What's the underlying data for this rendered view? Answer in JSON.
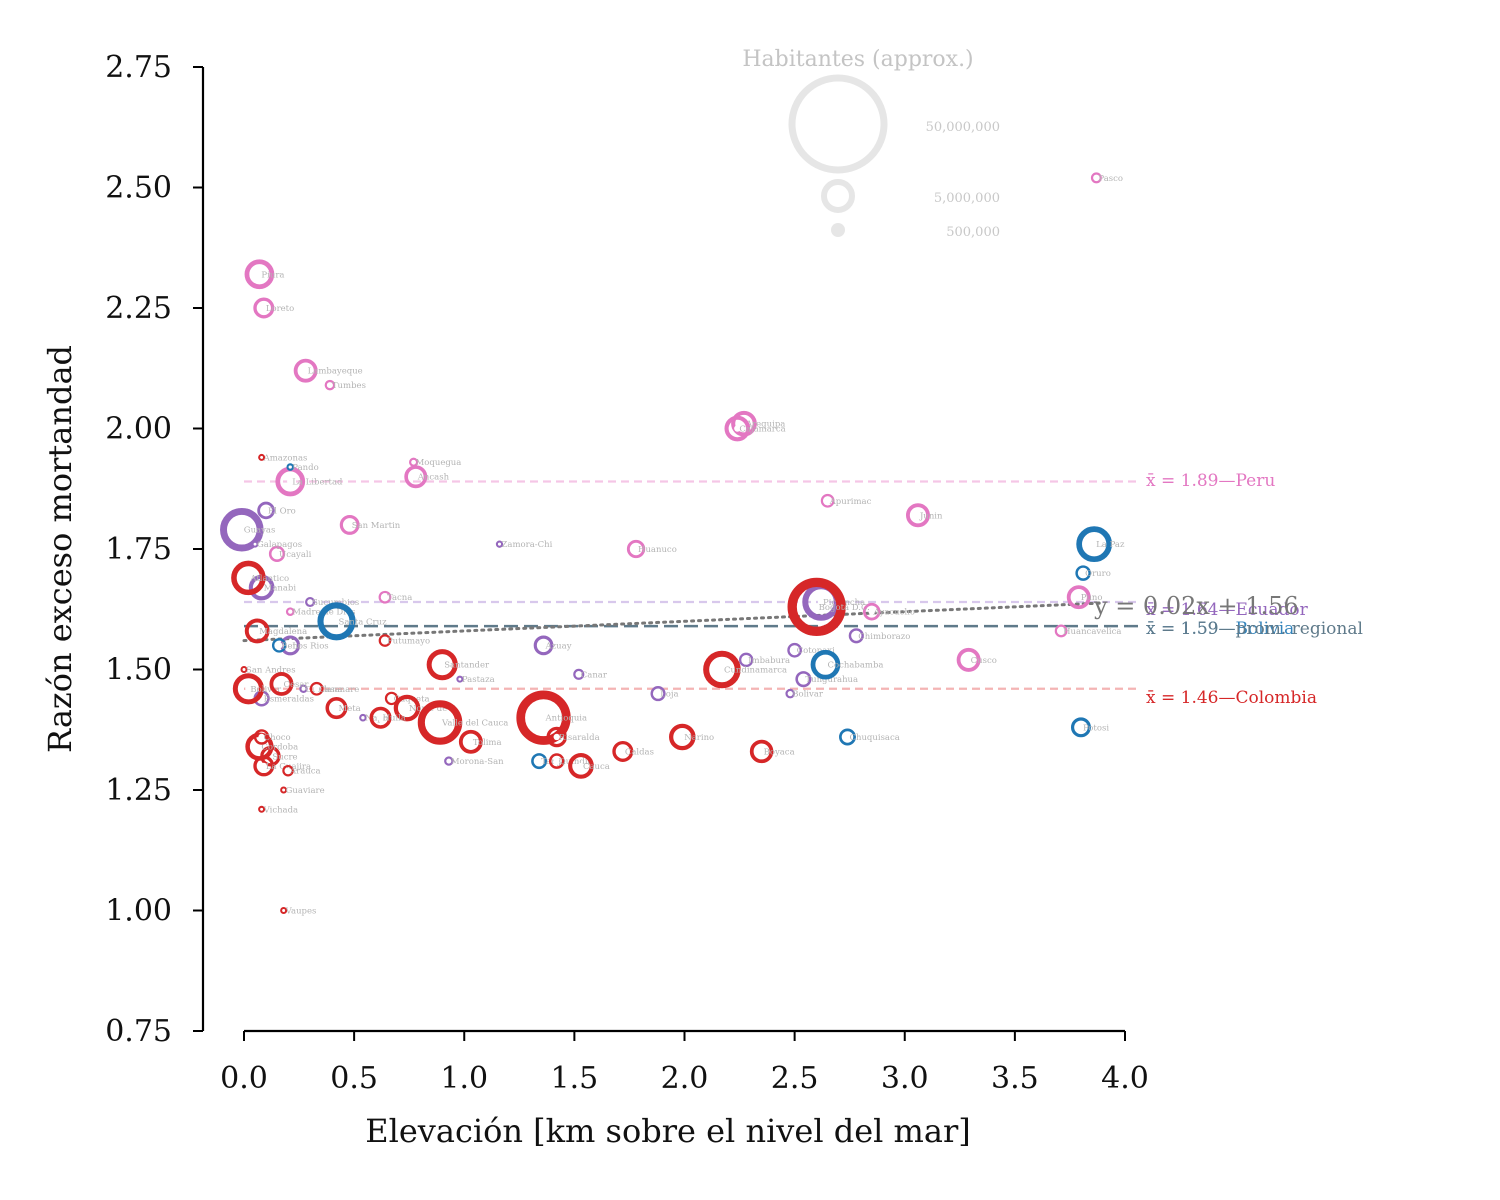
{
  "chart_data": {
    "type": "scatter",
    "xlabel": "Elevación [km sobre el nivel del mar]",
    "ylabel": "Razón exceso mortandad",
    "xlim": [
      -0.2,
      4.0
    ],
    "ylim": [
      0.75,
      2.75
    ],
    "xticks": [
      "0.0",
      "0.5",
      "1.0",
      "1.5",
      "2.0",
      "2.5",
      "3.0",
      "3.5",
      "4.0"
    ],
    "yticks": [
      "0.75",
      "1.00",
      "1.25",
      "1.50",
      "1.75",
      "2.00",
      "2.25",
      "2.50",
      "2.75"
    ],
    "colors": {
      "Peru": "#e377c2",
      "Ecuador": "#9467bd",
      "Bolivia": "#1f77b4",
      "Colombia": "#d62728",
      "regional": "#5f7a8a",
      "fit": "#777777"
    },
    "size_legend": {
      "title": "Habitantes (approx.)",
      "entries": [
        {
          "label": "50,000,000",
          "value": 50000000
        },
        {
          "label": "5,000,000",
          "value": 5000000
        },
        {
          "label": "500,000",
          "value": 500000
        }
      ]
    },
    "means": [
      {
        "country": "Peru",
        "value": 1.89,
        "label": "x̄ = 1.89—Peru"
      },
      {
        "country": "Ecuador",
        "value": 1.64,
        "label": "x̄ = 1.64—Ecuador"
      },
      {
        "country": "Bolivia",
        "value": 1.59,
        "label": "x̄ = 1.59—Bolivia"
      },
      {
        "country": "regional",
        "value": 1.59,
        "label": "x̄ = 1.59—prom. regional"
      },
      {
        "country": "Colombia",
        "value": 1.46,
        "label": "x̄ = 1.46—Colombia"
      }
    ],
    "fit": {
      "slope": 0.02,
      "intercept": 1.56,
      "label": "y = 0.02x + 1.56",
      "x_range": [
        0.0,
        3.9
      ]
    },
    "series": [
      {
        "name": "Peru",
        "points": [
          {
            "label": "Piura",
            "x": 0.07,
            "y": 2.32,
            "pop": 2000000
          },
          {
            "label": "Loreto",
            "x": 0.09,
            "y": 2.25,
            "pop": 1000000
          },
          {
            "label": "Lambayeque",
            "x": 0.28,
            "y": 2.12,
            "pop": 1300000
          },
          {
            "label": "Tumbes",
            "x": 0.39,
            "y": 2.09,
            "pop": 250000
          },
          {
            "label": "La Libertad",
            "x": 0.21,
            "y": 1.89,
            "pop": 2000000
          },
          {
            "label": "Moquegua",
            "x": 0.77,
            "y": 1.93,
            "pop": 190000
          },
          {
            "label": "Ancash",
            "x": 0.78,
            "y": 1.9,
            "pop": 1200000
          },
          {
            "label": "San Martin",
            "x": 0.48,
            "y": 1.8,
            "pop": 900000
          },
          {
            "label": "Ucayali",
            "x": 0.15,
            "y": 1.74,
            "pop": 600000
          },
          {
            "label": "Tacna",
            "x": 0.64,
            "y": 1.65,
            "pop": 370000
          },
          {
            "label": "Madre de Dios",
            "x": 0.21,
            "y": 1.62,
            "pop": 170000
          },
          {
            "label": "Huanuco",
            "x": 1.78,
            "y": 1.75,
            "pop": 760000
          },
          {
            "label": "Arequipa",
            "x": 2.27,
            "y": 2.01,
            "pop": 1500000
          },
          {
            "label": "Cajamarca",
            "x": 2.24,
            "y": 2.0,
            "pop": 1500000
          },
          {
            "label": "Apurimac",
            "x": 2.65,
            "y": 1.85,
            "pop": 430000
          },
          {
            "label": "Junin",
            "x": 3.06,
            "y": 1.82,
            "pop": 1300000
          },
          {
            "label": "Ayacucho",
            "x": 2.85,
            "y": 1.62,
            "pop": 700000
          },
          {
            "label": "Cusco",
            "x": 3.29,
            "y": 1.52,
            "pop": 1300000
          },
          {
            "label": "Pasco",
            "x": 3.87,
            "y": 2.52,
            "pop": 270000
          },
          {
            "label": "Puno",
            "x": 3.79,
            "y": 1.65,
            "pop": 1300000
          },
          {
            "label": "Huancavelica",
            "x": 3.71,
            "y": 1.58,
            "pop": 370000
          }
        ]
      },
      {
        "name": "Ecuador",
        "points": [
          {
            "label": "Guayas",
            "x": -0.01,
            "y": 1.79,
            "pop": 4300000
          },
          {
            "label": "El Oro",
            "x": 0.1,
            "y": 1.83,
            "pop": 700000
          },
          {
            "label": "Galapagos",
            "x": 0.05,
            "y": 1.76,
            "pop": 30000
          },
          {
            "label": "Manabi",
            "x": 0.08,
            "y": 1.67,
            "pop": 1500000
          },
          {
            "label": "Sucumbios",
            "x": 0.3,
            "y": 1.64,
            "pop": 230000
          },
          {
            "label": "Los Rios",
            "x": 0.21,
            "y": 1.55,
            "pop": 900000
          },
          {
            "label": "Esmeraldas",
            "x": 0.08,
            "y": 1.44,
            "pop": 600000
          },
          {
            "label": "Orellana",
            "x": 0.27,
            "y": 1.46,
            "pop": 160000
          },
          {
            "label": "Napo",
            "x": 0.54,
            "y": 1.4,
            "pop": 130000
          },
          {
            "label": "Pastaza",
            "x": 0.98,
            "y": 1.48,
            "pop": 110000
          },
          {
            "label": "Zamora-Chi",
            "x": 1.16,
            "y": 1.76,
            "pop": 120000
          },
          {
            "label": "Morona-San",
            "x": 0.93,
            "y": 1.31,
            "pop": 200000
          },
          {
            "label": "Canar",
            "x": 1.52,
            "y": 1.49,
            "pop": 280000
          },
          {
            "label": "Azuay",
            "x": 1.36,
            "y": 1.55,
            "pop": 880000
          },
          {
            "label": "Loja",
            "x": 1.88,
            "y": 1.45,
            "pop": 520000
          },
          {
            "label": "Pichincha",
            "x": 2.62,
            "y": 1.64,
            "pop": 3200000
          },
          {
            "label": "Imbabura",
            "x": 2.28,
            "y": 1.52,
            "pop": 470000
          },
          {
            "label": "Cotopaxi",
            "x": 2.5,
            "y": 1.54,
            "pop": 490000
          },
          {
            "label": "Tungurahua",
            "x": 2.54,
            "y": 1.48,
            "pop": 590000
          },
          {
            "label": "Bolivar",
            "x": 2.48,
            "y": 1.45,
            "pop": 210000
          },
          {
            "label": "Chimborazo",
            "x": 2.78,
            "y": 1.57,
            "pop": 520000
          }
        ]
      },
      {
        "name": "Bolivia",
        "points": [
          {
            "label": "Pando",
            "x": 0.21,
            "y": 1.92,
            "pop": 130000
          },
          {
            "label": "Beni",
            "x": 0.16,
            "y": 1.55,
            "pop": 480000
          },
          {
            "label": "Santa Cruz",
            "x": 0.42,
            "y": 1.6,
            "pop": 3300000
          },
          {
            "label": "Tarija",
            "x": 1.34,
            "y": 1.31,
            "pop": 580000
          },
          {
            "label": "Chuquisaca",
            "x": 2.74,
            "y": 1.36,
            "pop": 650000
          },
          {
            "label": "Cochabamba",
            "x": 2.64,
            "y": 1.51,
            "pop": 2000000
          },
          {
            "label": "La Paz",
            "x": 3.86,
            "y": 1.76,
            "pop": 2900000
          },
          {
            "label": "Oruro",
            "x": 3.81,
            "y": 1.7,
            "pop": 550000
          },
          {
            "label": "Potosi",
            "x": 3.8,
            "y": 1.38,
            "pop": 900000
          }
        ]
      },
      {
        "name": "Colombia",
        "points": [
          {
            "label": "Amazonas",
            "x": 0.08,
            "y": 1.94,
            "pop": 80000
          },
          {
            "label": "Atlantico",
            "x": 0.02,
            "y": 1.69,
            "pop": 2700000
          },
          {
            "label": "Magdalena",
            "x": 0.06,
            "y": 1.58,
            "pop": 1400000
          },
          {
            "label": "San Andres",
            "x": 0.0,
            "y": 1.5,
            "pop": 60000
          },
          {
            "label": "Bolivar",
            "x": 0.02,
            "y": 1.46,
            "pop": 2200000
          },
          {
            "label": "Cesar",
            "x": 0.17,
            "y": 1.47,
            "pop": 1300000
          },
          {
            "label": "Sucre",
            "x": 0.12,
            "y": 1.32,
            "pop": 950000
          },
          {
            "label": "Cordoba",
            "x": 0.07,
            "y": 1.34,
            "pop": 1800000
          },
          {
            "label": "Choco",
            "x": 0.08,
            "y": 1.36,
            "pop": 550000
          },
          {
            "label": "La Guajira",
            "x": 0.09,
            "y": 1.3,
            "pop": 1000000
          },
          {
            "label": "Arauca",
            "x": 0.2,
            "y": 1.29,
            "pop": 300000
          },
          {
            "label": "Guaviare",
            "x": 0.18,
            "y": 1.25,
            "pop": 90000
          },
          {
            "label": "Vichada",
            "x": 0.08,
            "y": 1.21,
            "pop": 110000
          },
          {
            "label": "Vaupes",
            "x": 0.18,
            "y": 1.0,
            "pop": 45000
          },
          {
            "label": "Casanare",
            "x": 0.33,
            "y": 1.46,
            "pop": 430000
          },
          {
            "label": "Meta",
            "x": 0.42,
            "y": 1.42,
            "pop": 1100000
          },
          {
            "label": "Putumayo",
            "x": 0.64,
            "y": 1.56,
            "pop": 360000
          },
          {
            "label": "Caqueta",
            "x": 0.67,
            "y": 1.44,
            "pop": 410000
          },
          {
            "label": "Norte de S",
            "x": 0.74,
            "y": 1.42,
            "pop": 1600000
          },
          {
            "label": "Santander",
            "x": 0.9,
            "y": 1.51,
            "pop": 2200000
          },
          {
            "label": "Valle del Cauca",
            "x": 0.89,
            "y": 1.39,
            "pop": 4500000
          },
          {
            "label": "Tolima",
            "x": 1.03,
            "y": 1.35,
            "pop": 1300000
          },
          {
            "label": "Antioquia",
            "x": 1.36,
            "y": 1.4,
            "pop": 6700000
          },
          {
            "label": "Risaralda",
            "x": 1.42,
            "y": 1.36,
            "pop": 960000
          },
          {
            "label": "Quindio",
            "x": 1.42,
            "y": 1.31,
            "pop": 550000
          },
          {
            "label": "Cauca",
            "x": 1.53,
            "y": 1.3,
            "pop": 1500000
          },
          {
            "label": "Caldas",
            "x": 1.72,
            "y": 1.33,
            "pop": 1000000
          },
          {
            "label": "Narino",
            "x": 1.99,
            "y": 1.36,
            "pop": 1600000
          },
          {
            "label": "Cundinamarca",
            "x": 2.17,
            "y": 1.5,
            "pop": 3200000
          },
          {
            "label": "Boyaca",
            "x": 2.35,
            "y": 1.33,
            "pop": 1250000
          },
          {
            "label": "Bogota D.C.",
            "x": 2.6,
            "y": 1.63,
            "pop": 7700000
          },
          {
            "label": "Huila",
            "x": 0.62,
            "y": 1.4,
            "pop": 1100000
          }
        ]
      }
    ]
  }
}
